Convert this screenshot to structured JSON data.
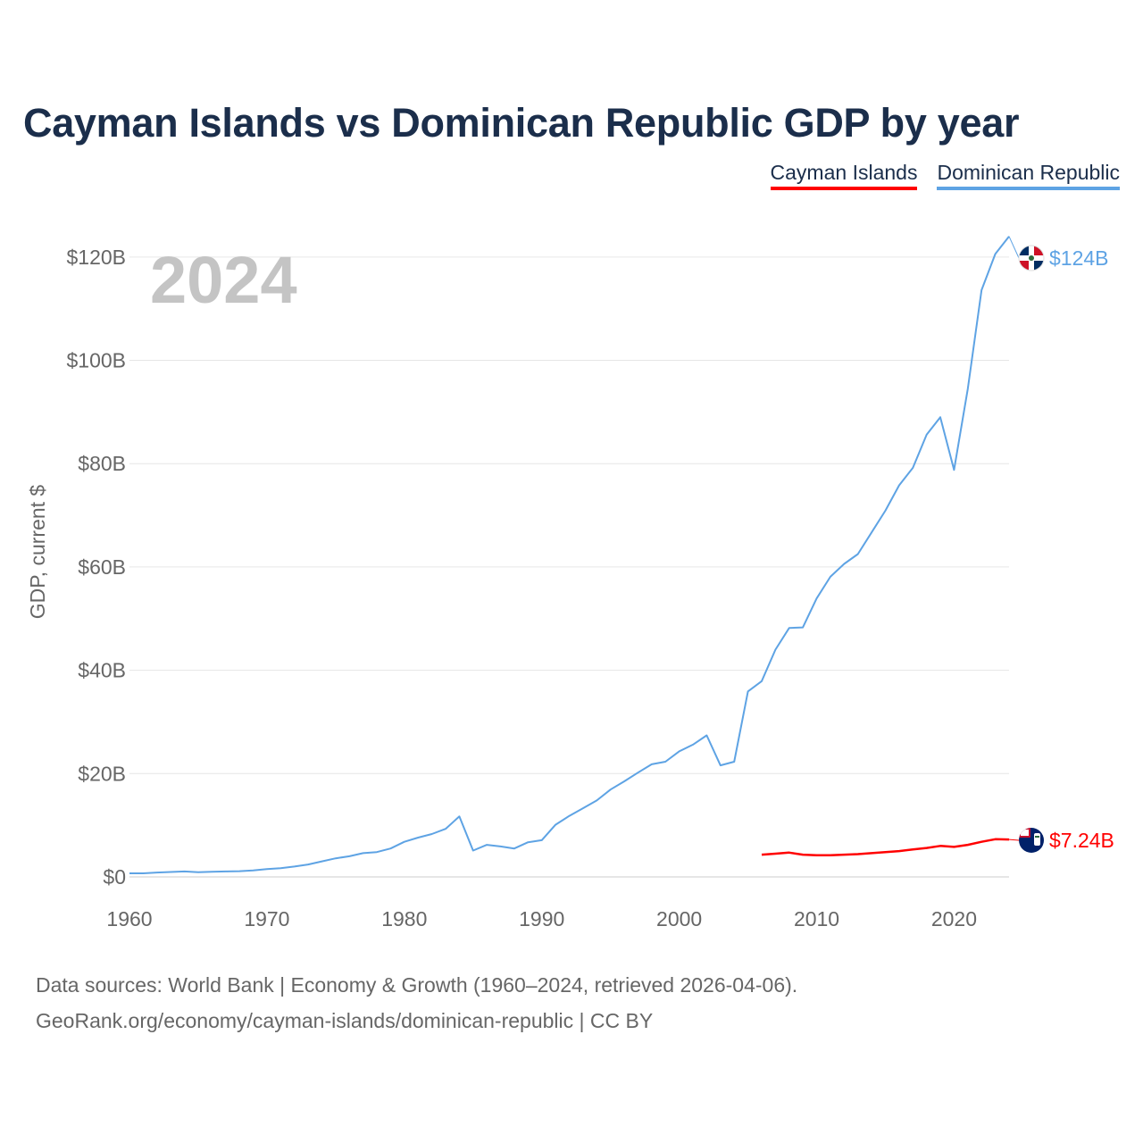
{
  "title": "Cayman Islands vs Dominican Republic GDP by year",
  "legend": [
    {
      "label": "Cayman Islands",
      "color": "#ff0000"
    },
    {
      "label": "Dominican Republic",
      "color": "#5ea3e4"
    }
  ],
  "footer": {
    "line1": "Data sources: World Bank | Economy & Growth (1960–2024, retrieved 2026-04-06).",
    "line2": "GeoRank.org/economy/cayman-islands/dominican-republic | CC BY"
  },
  "chart_data": {
    "type": "line",
    "title": "Cayman Islands vs Dominican Republic GDP by year",
    "xlabel": "",
    "ylabel": "GDP, current $",
    "year_watermark": "2024",
    "xlim": [
      1960,
      2024
    ],
    "ylim": [
      0,
      130
    ],
    "unit": "billions USD",
    "x_ticks": [
      {
        "value": 1960,
        "label": "1960"
      },
      {
        "value": 1970,
        "label": "1970"
      },
      {
        "value": 1980,
        "label": "1980"
      },
      {
        "value": 1990,
        "label": "1990"
      },
      {
        "value": 2000,
        "label": "2000"
      },
      {
        "value": 2010,
        "label": "2010"
      },
      {
        "value": 2020,
        "label": "2020"
      }
    ],
    "y_ticks": [
      {
        "value": 0,
        "label": "$0"
      },
      {
        "value": 20,
        "label": "$20B"
      },
      {
        "value": 40,
        "label": "$40B"
      },
      {
        "value": 60,
        "label": "$60B"
      },
      {
        "value": 80,
        "label": "$80B"
      },
      {
        "value": 100,
        "label": "$100B"
      },
      {
        "value": 120,
        "label": "$120B"
      }
    ],
    "series": [
      {
        "name": "Dominican Republic",
        "color": "#5ea3e4",
        "end_label": "$124B",
        "x": [
          1960,
          1961,
          1962,
          1963,
          1964,
          1965,
          1966,
          1967,
          1968,
          1969,
          1970,
          1971,
          1972,
          1973,
          1974,
          1975,
          1976,
          1977,
          1978,
          1979,
          1980,
          1981,
          1982,
          1983,
          1984,
          1985,
          1986,
          1987,
          1988,
          1989,
          1990,
          1991,
          1992,
          1993,
          1994,
          1995,
          1996,
          1997,
          1998,
          1999,
          2000,
          2001,
          2002,
          2003,
          2004,
          2005,
          2006,
          2007,
          2008,
          2009,
          2010,
          2011,
          2012,
          2013,
          2014,
          2015,
          2016,
          2017,
          2018,
          2019,
          2020,
          2021,
          2022,
          2023,
          2024
        ],
        "values": [
          0.7,
          0.7,
          0.85,
          0.95,
          1.05,
          0.9,
          1.0,
          1.05,
          1.1,
          1.25,
          1.5,
          1.7,
          2.0,
          2.4,
          3.0,
          3.6,
          4.0,
          4.6,
          4.8,
          5.5,
          6.8,
          7.6,
          8.3,
          9.3,
          11.7,
          5.1,
          6.2,
          5.9,
          5.5,
          6.7,
          7.1,
          10.1,
          11.8,
          13.3,
          14.8,
          16.9,
          18.5,
          20.2,
          21.8,
          22.3,
          24.3,
          25.6,
          27.4,
          21.6,
          22.3,
          35.9,
          37.9,
          44.0,
          48.2,
          48.3,
          53.9,
          58.1,
          60.6,
          62.5,
          66.7,
          70.9,
          75.8,
          79.2,
          85.6,
          89.0,
          78.8,
          94.5,
          113.6,
          120.6,
          124.0
        ]
      },
      {
        "name": "Cayman Islands",
        "color": "#ff0000",
        "end_label": "$7.24B",
        "x": [
          2006,
          2007,
          2008,
          2009,
          2010,
          2011,
          2012,
          2013,
          2014,
          2015,
          2016,
          2017,
          2018,
          2019,
          2020,
          2021,
          2022,
          2023,
          2024
        ],
        "values": [
          4.3,
          4.5,
          4.7,
          4.3,
          4.2,
          4.2,
          4.3,
          4.4,
          4.6,
          4.8,
          5.0,
          5.3,
          5.6,
          6.0,
          5.8,
          6.2,
          6.8,
          7.3,
          7.24
        ]
      }
    ]
  }
}
